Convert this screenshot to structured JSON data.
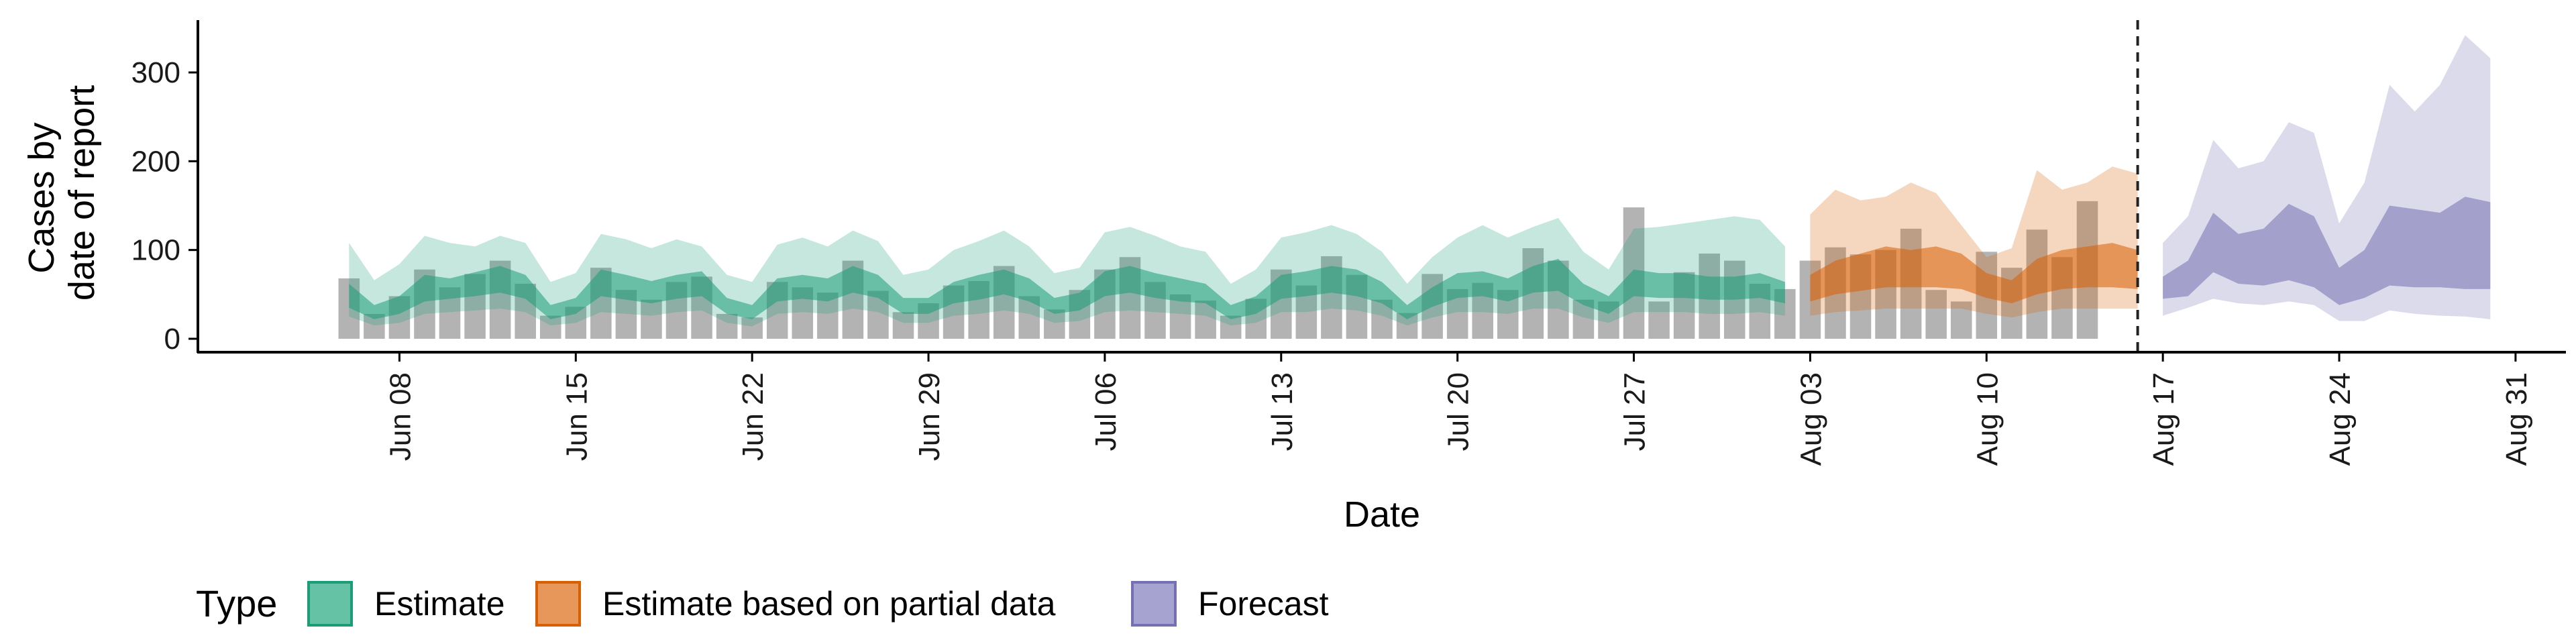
{
  "chart_data": {
    "type": "bar",
    "xlabel": "Date",
    "ylabel_lines": [
      "Cases by",
      "date of report"
    ],
    "ylim": [
      0,
      350
    ],
    "yticks": [
      0,
      100,
      200,
      300
    ],
    "grid": false,
    "date_start": "Jun 06",
    "x_tick_labels": [
      {
        "label": "Jun 08",
        "day": 2
      },
      {
        "label": "Jun 15",
        "day": 9
      },
      {
        "label": "Jun 22",
        "day": 16
      },
      {
        "label": "Jun 29",
        "day": 23
      },
      {
        "label": "Jul 06",
        "day": 30
      },
      {
        "label": "Jul 13",
        "day": 37
      },
      {
        "label": "Jul 20",
        "day": 44
      },
      {
        "label": "Jul 27",
        "day": 51
      },
      {
        "label": "Aug 03",
        "day": 58
      },
      {
        "label": "Aug 10",
        "day": 65
      },
      {
        "label": "Aug 17",
        "day": 72
      },
      {
        "label": "Aug 24",
        "day": 79
      },
      {
        "label": "Aug 31",
        "day": 86
      }
    ],
    "xlim_days": [
      -6,
      88
    ],
    "forecast_line_day": 71,
    "reported_cases": [
      68,
      28,
      48,
      78,
      58,
      73,
      88,
      62,
      26,
      36,
      80,
      55,
      44,
      64,
      70,
      28,
      24,
      64,
      58,
      52,
      88,
      54,
      30,
      40,
      60,
      65,
      82,
      48,
      33,
      55,
      78,
      92,
      64,
      50,
      43,
      26,
      45,
      78,
      60,
      93,
      72,
      44,
      29,
      73,
      56,
      63,
      55,
      102,
      88,
      44,
      42,
      148,
      42,
      75,
      96,
      88,
      62,
      56,
      88,
      103,
      95,
      100,
      124,
      55,
      42,
      98,
      80,
      123,
      92,
      155
    ],
    "bands": [
      {
        "name": "Estimate",
        "color": "#1b9e77",
        "start_day": 0,
        "outer_low": [
          25,
          15,
          18,
          28,
          30,
          32,
          34,
          30,
          15,
          18,
          30,
          28,
          26,
          30,
          32,
          18,
          14,
          28,
          30,
          28,
          34,
          30,
          18,
          18,
          26,
          28,
          32,
          28,
          18,
          20,
          30,
          32,
          30,
          28,
          26,
          15,
          18,
          30,
          30,
          34,
          32,
          26,
          15,
          24,
          30,
          30,
          28,
          34,
          34,
          24,
          18,
          30,
          30,
          30,
          28,
          28,
          30,
          26
        ],
        "inner_low": [
          35,
          22,
          28,
          42,
          45,
          48,
          52,
          45,
          22,
          28,
          48,
          44,
          40,
          45,
          48,
          28,
          22,
          42,
          45,
          42,
          52,
          46,
          28,
          28,
          40,
          44,
          50,
          42,
          28,
          32,
          48,
          52,
          46,
          42,
          40,
          22,
          28,
          45,
          48,
          52,
          48,
          40,
          22,
          36,
          46,
          48,
          42,
          52,
          54,
          38,
          28,
          48,
          46,
          46,
          44,
          44,
          46,
          40
        ],
        "inner_high": [
          62,
          38,
          48,
          72,
          68,
          75,
          82,
          72,
          38,
          46,
          78,
          72,
          65,
          72,
          76,
          46,
          38,
          68,
          72,
          68,
          82,
          72,
          46,
          46,
          64,
          72,
          78,
          68,
          46,
          52,
          76,
          82,
          74,
          68,
          62,
          38,
          48,
          72,
          76,
          82,
          78,
          64,
          38,
          58,
          74,
          76,
          68,
          82,
          90,
          62,
          48,
          78,
          74,
          74,
          70,
          70,
          74,
          64
        ],
        "outer_high": [
          108,
          66,
          84,
          116,
          108,
          104,
          116,
          108,
          64,
          74,
          118,
          112,
          102,
          112,
          104,
          72,
          64,
          106,
          114,
          104,
          122,
          110,
          72,
          78,
          100,
          110,
          122,
          104,
          74,
          80,
          120,
          126,
          116,
          104,
          98,
          62,
          78,
          114,
          120,
          128,
          118,
          98,
          62,
          92,
          114,
          128,
          114,
          126,
          136,
          98,
          78,
          124,
          126,
          130,
          134,
          138,
          134,
          104
        ]
      },
      {
        "name": "Estimate based on partial data",
        "color": "#d95f02",
        "start_day": 58,
        "outer_low": [
          26,
          30,
          32,
          34,
          34,
          34,
          34,
          28,
          24,
          30,
          34,
          34,
          34,
          34
        ],
        "inner_low": [
          42,
          50,
          54,
          58,
          58,
          58,
          56,
          46,
          40,
          50,
          56,
          58,
          58,
          56
        ],
        "inner_high": [
          72,
          88,
          96,
          104,
          100,
          104,
          96,
          74,
          66,
          90,
          100,
          104,
          108,
          100
        ],
        "outer_high": [
          140,
          168,
          156,
          160,
          176,
          164,
          128,
          92,
          102,
          190,
          168,
          176,
          194,
          186
        ]
      },
      {
        "name": "Forecast",
        "color": "#7570b3",
        "start_day": 72,
        "outer_low": [
          26,
          35,
          45,
          40,
          38,
          42,
          38,
          20,
          20,
          32,
          28,
          26,
          25,
          22
        ],
        "inner_low": [
          45,
          48,
          75,
          62,
          60,
          66,
          58,
          38,
          46,
          60,
          58,
          58,
          56,
          56
        ],
        "inner_high": [
          70,
          88,
          142,
          118,
          124,
          152,
          138,
          80,
          100,
          150,
          146,
          142,
          160,
          154
        ],
        "outer_high": [
          108,
          138,
          224,
          192,
          200,
          244,
          232,
          130,
          176,
          286,
          256,
          286,
          342,
          316
        ]
      }
    ],
    "legend": {
      "title": "Type",
      "position": "bottom",
      "items": [
        {
          "label": "Estimate",
          "fill": "#66c2a5",
          "stroke": "#1b9e77"
        },
        {
          "label": "Estimate based on partial data",
          "fill": "#e8975a",
          "stroke": "#d95f02"
        },
        {
          "label": "Forecast",
          "fill": "#a6a3d1",
          "stroke": "#7570b3"
        }
      ]
    }
  }
}
